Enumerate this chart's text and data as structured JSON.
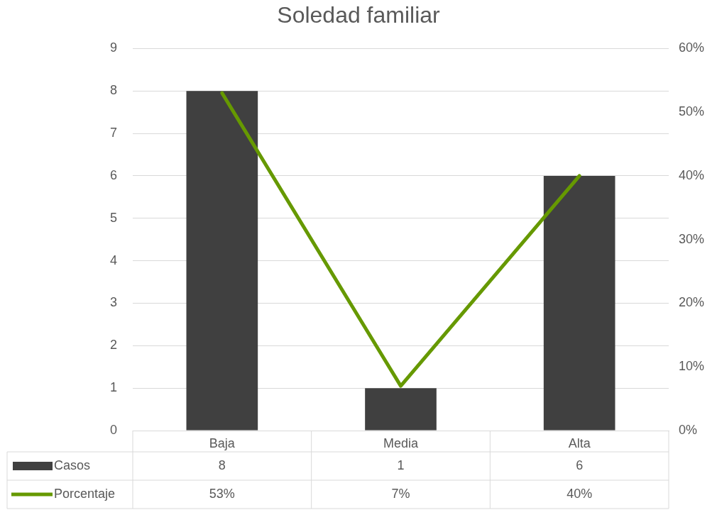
{
  "chart_data": {
    "type": "bar",
    "title": "Soledad familiar",
    "categories": [
      "Baja",
      "Media",
      "Alta"
    ],
    "series": [
      {
        "name": "Casos",
        "color": "#404040",
        "values": [
          8,
          1,
          6
        ],
        "value_labels": [
          "8",
          "1",
          "6"
        ]
      },
      {
        "name": "Porcentaje",
        "type": "line",
        "axis": "y2",
        "color": "#669900",
        "values": [
          53,
          7,
          40
        ],
        "value_labels": [
          "53%",
          "7%",
          "40%"
        ]
      }
    ],
    "ylim": [
      0,
      9
    ],
    "yticks": [
      0,
      1,
      2,
      3,
      4,
      5,
      6,
      7,
      8,
      9
    ],
    "y2lim": [
      0,
      60
    ],
    "y2ticks": [
      {
        "value": 0,
        "label": "0%"
      },
      {
        "value": 10,
        "label": "10%"
      },
      {
        "value": 20,
        "label": "20%"
      },
      {
        "value": 30,
        "label": "30%"
      },
      {
        "value": 40,
        "label": "40%"
      },
      {
        "value": 50,
        "label": "50%"
      },
      {
        "value": 60,
        "label": "60%"
      }
    ],
    "grid": "y",
    "legend": "bottom",
    "marker": "none",
    "line_style": "solid"
  }
}
